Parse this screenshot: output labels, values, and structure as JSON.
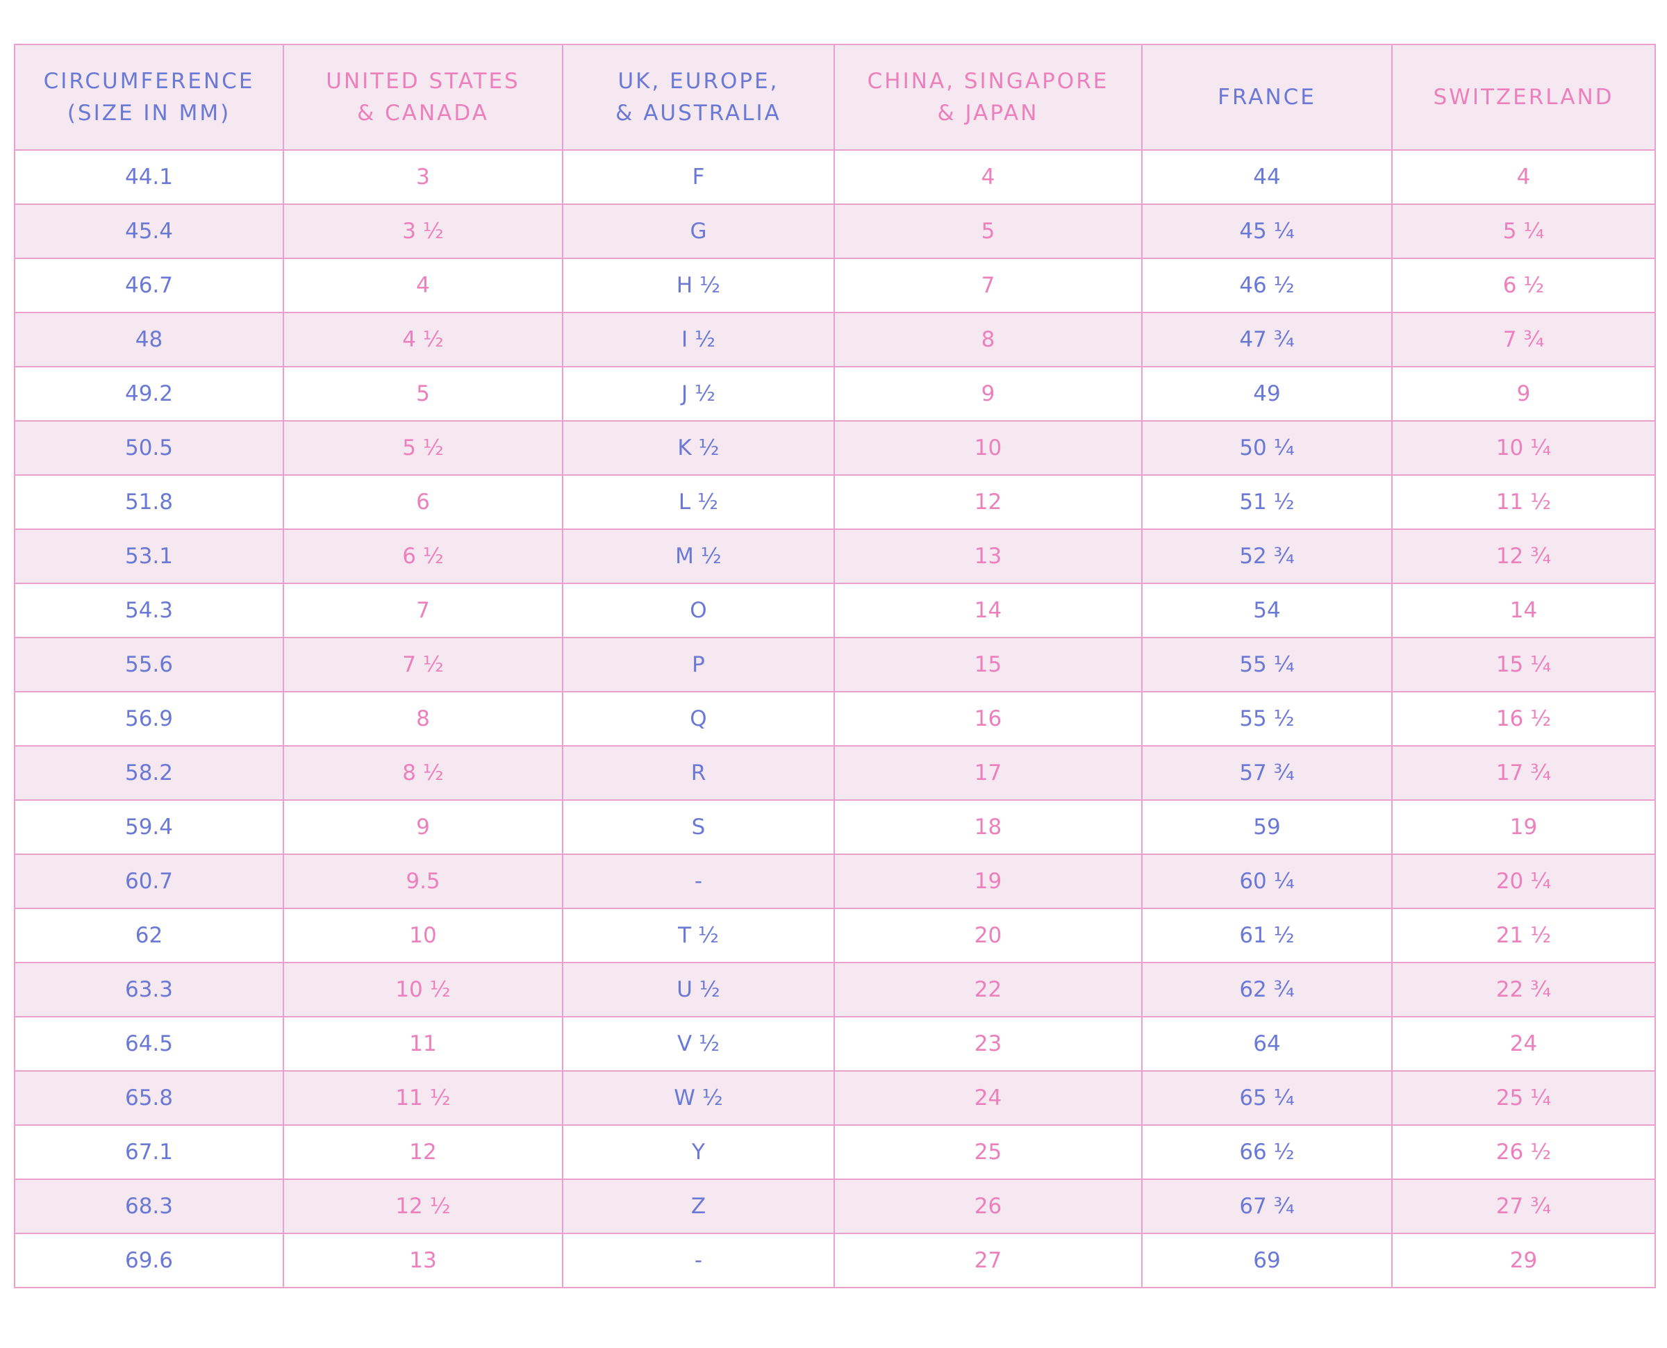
{
  "colors": {
    "blue_text": "#6a79d6",
    "pink_text": "#ec80bd",
    "border": "#e9a0cf",
    "stripe": "#f6e8f1",
    "background": "#ffffff"
  },
  "table": {
    "headers": [
      {
        "line1": "Circumference",
        "line2": "(Size in MM)"
      },
      {
        "line1": "United States",
        "line2": "& Canada"
      },
      {
        "line1": "UK, Europe,",
        "line2": "& Australia"
      },
      {
        "line1": "China, Singapore",
        "line2": "& Japan"
      },
      {
        "line1": "France",
        "line2": ""
      },
      {
        "line1": "Switzerland",
        "line2": ""
      }
    ],
    "rows": [
      [
        "44.1",
        "3",
        "F",
        "4",
        "44",
        "4"
      ],
      [
        "45.4",
        "3 ½",
        "G",
        "5",
        "45 ¼",
        "5 ¼"
      ],
      [
        "46.7",
        "4",
        "H ½",
        "7",
        "46 ½",
        "6 ½"
      ],
      [
        "48",
        "4 ½",
        "I ½",
        "8",
        "47 ¾",
        "7 ¾"
      ],
      [
        "49.2",
        "5",
        "J ½",
        "9",
        "49",
        "9"
      ],
      [
        "50.5",
        "5 ½",
        "K ½",
        "10",
        "50 ¼",
        "10 ¼"
      ],
      [
        "51.8",
        "6",
        "L ½",
        "12",
        "51 ½",
        "11 ½"
      ],
      [
        "53.1",
        "6 ½",
        "M ½",
        "13",
        "52 ¾",
        "12 ¾"
      ],
      [
        "54.3",
        "7",
        "O",
        "14",
        "54",
        "14"
      ],
      [
        "55.6",
        "7 ½",
        "P",
        "15",
        "55 ¼",
        "15 ¼"
      ],
      [
        "56.9",
        "8",
        "Q",
        "16",
        "55 ½",
        "16 ½"
      ],
      [
        "58.2",
        "8 ½",
        "R",
        "17",
        "57 ¾",
        "17 ¾"
      ],
      [
        "59.4",
        "9",
        "S",
        "18",
        "59",
        "19"
      ],
      [
        "60.7",
        "9.5",
        "-",
        "19",
        "60 ¼",
        "20 ¼"
      ],
      [
        "62",
        "10",
        "T ½",
        "20",
        "61 ½",
        "21 ½"
      ],
      [
        "63.3",
        "10 ½",
        "U ½",
        "22",
        "62 ¾",
        "22 ¾"
      ],
      [
        "64.5",
        "11",
        "V ½",
        "23",
        "64",
        "24"
      ],
      [
        "65.8",
        "11 ½",
        "W ½",
        "24",
        "65 ¼",
        "25 ¼"
      ],
      [
        "67.1",
        "12",
        "Y",
        "25",
        "66 ½",
        "26 ½"
      ],
      [
        "68.3",
        "12 ½",
        "Z",
        "26",
        "67 ¾",
        "27 ¾"
      ],
      [
        "69.6",
        "13",
        "-",
        "27",
        "69",
        "29"
      ]
    ]
  }
}
